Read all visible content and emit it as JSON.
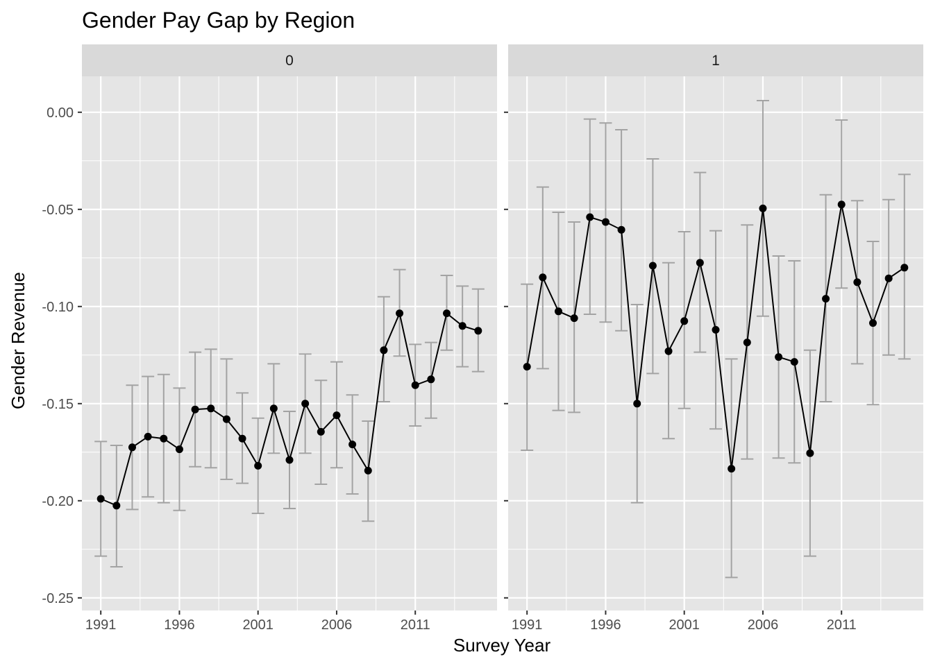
{
  "chart_data": {
    "type": "line",
    "title": "Gender Pay Gap by Region",
    "xlabel": "Survey Year",
    "ylabel": "Gender Revenue",
    "xlim": [
      1991,
      2015
    ],
    "ylim": [
      -0.25,
      0.0
    ],
    "x_ticks": [
      1991,
      1996,
      2001,
      2006,
      2011
    ],
    "x_tick_labels": [
      "1991",
      "1996",
      "2001",
      "2006",
      "2011"
    ],
    "y_ticks": [
      0.0,
      -0.05,
      -0.1,
      -0.15,
      -0.2,
      -0.25
    ],
    "y_tick_labels": [
      "0.00",
      "-0.05",
      "-0.10",
      "-0.15",
      "-0.20",
      "-0.25"
    ],
    "grid": true,
    "colors": {
      "line": "#000000",
      "point": "#000000",
      "errorbar": "#a3a3a3",
      "panel": "#e5e5e5",
      "strip": "#d9d9d9",
      "grid": "#ffffff"
    },
    "facets": [
      {
        "label": "0",
        "x": [
          1991,
          1992,
          1993,
          1994,
          1995,
          1996,
          1997,
          1998,
          1999,
          2000,
          2001,
          2002,
          2003,
          2004,
          2005,
          2006,
          2007,
          2008,
          2009,
          2010,
          2011,
          2012,
          2013,
          2014,
          2015
        ],
        "y": [
          -0.199,
          -0.2025,
          -0.1725,
          -0.167,
          -0.168,
          -0.1735,
          -0.153,
          -0.1525,
          -0.158,
          -0.168,
          -0.182,
          -0.1525,
          -0.179,
          -0.15,
          -0.1645,
          -0.156,
          -0.171,
          -0.1845,
          -0.1225,
          -0.1035,
          -0.1405,
          -0.1375,
          -0.1035,
          -0.11,
          -0.1125
        ],
        "ymin": [
          -0.2285,
          -0.234,
          -0.2045,
          -0.198,
          -0.201,
          -0.205,
          -0.1825,
          -0.183,
          -0.189,
          -0.191,
          -0.2065,
          -0.1755,
          -0.204,
          -0.1755,
          -0.1915,
          -0.183,
          -0.1965,
          -0.2105,
          -0.149,
          -0.1255,
          -0.1615,
          -0.1575,
          -0.1225,
          -0.131,
          -0.1335
        ],
        "ymax": [
          -0.1695,
          -0.1715,
          -0.1405,
          -0.136,
          -0.135,
          -0.142,
          -0.1235,
          -0.122,
          -0.127,
          -0.1445,
          -0.1575,
          -0.1295,
          -0.154,
          -0.1245,
          -0.138,
          -0.1285,
          -0.1455,
          -0.159,
          -0.095,
          -0.081,
          -0.1195,
          -0.1185,
          -0.084,
          -0.0895,
          -0.091
        ]
      },
      {
        "label": "1",
        "x": [
          1991,
          1992,
          1993,
          1994,
          1995,
          1996,
          1997,
          1998,
          1999,
          2000,
          2001,
          2002,
          2003,
          2004,
          2005,
          2006,
          2007,
          2008,
          2009,
          2010,
          2011,
          2012,
          2013,
          2014,
          2015
        ],
        "y": [
          -0.131,
          -0.085,
          -0.1025,
          -0.106,
          -0.054,
          -0.0565,
          -0.0605,
          -0.15,
          -0.079,
          -0.123,
          -0.1075,
          -0.0775,
          -0.112,
          -0.1835,
          -0.1185,
          -0.0495,
          -0.126,
          -0.1285,
          -0.1755,
          -0.096,
          -0.0475,
          -0.0875,
          -0.1085,
          -0.0855,
          -0.08
        ],
        "ymin": [
          -0.174,
          -0.132,
          -0.1535,
          -0.1545,
          -0.104,
          -0.108,
          -0.1125,
          -0.201,
          -0.1345,
          -0.168,
          -0.1525,
          -0.1235,
          -0.163,
          -0.2395,
          -0.1785,
          -0.105,
          -0.178,
          -0.1805,
          -0.2285,
          -0.149,
          -0.0905,
          -0.1295,
          -0.1505,
          -0.125,
          -0.127
        ],
        "ymax": [
          -0.0885,
          -0.0385,
          -0.0515,
          -0.0565,
          -0.0035,
          -0.0055,
          -0.009,
          -0.099,
          -0.024,
          -0.0775,
          -0.0615,
          -0.031,
          -0.061,
          -0.127,
          -0.058,
          0.006,
          -0.074,
          -0.0765,
          -0.1225,
          -0.0425,
          -0.004,
          -0.0455,
          -0.0665,
          -0.045,
          -0.032
        ]
      }
    ]
  }
}
